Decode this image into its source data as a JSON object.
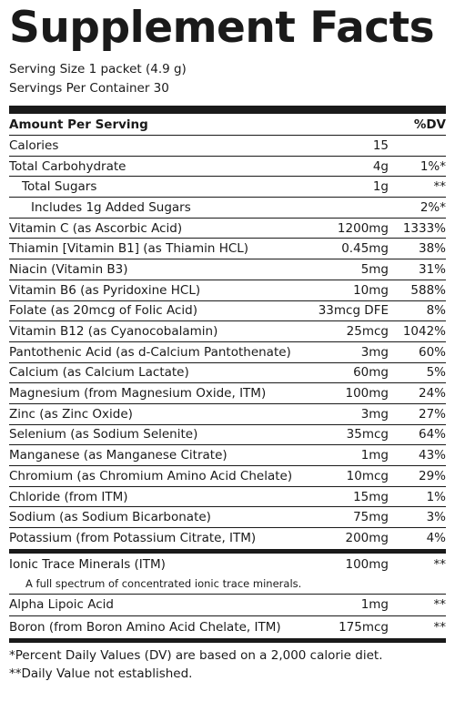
{
  "title": "Supplement Facts",
  "serving_size": "Serving Size 1 packet (4.9 g)",
  "servings_per_container": "Servings Per Container 30",
  "header": {
    "amount_label": "Amount Per Serving",
    "dv_label": "%DV"
  },
  "rows": [
    {
      "name": "Calories",
      "amount": "15",
      "dv": ""
    },
    {
      "name": "Total Carbohydrate",
      "amount": "4g",
      "dv": "1%*"
    },
    {
      "name": "Total Sugars",
      "amount": "1g",
      "dv": "**"
    },
    {
      "name": "Includes 1g Added Sugars",
      "amount": "",
      "dv": "2%*"
    },
    {
      "name": "Vitamin C (as Ascorbic Acid)",
      "amount": "1200mg",
      "dv": "1333%"
    },
    {
      "name": "Thiamin [Vitamin B1] (as Thiamin HCL)",
      "amount": "0.45mg",
      "dv": "38%"
    },
    {
      "name": "Niacin (Vitamin B3)",
      "amount": "5mg",
      "dv": "31%"
    },
    {
      "name": "Vitamin B6 (as Pyridoxine HCL)",
      "amount": "10mg",
      "dv": "588%"
    },
    {
      "name": "Folate (as 20mcg of Folic Acid)",
      "amount": "33mcg DFE",
      "dv": "8%"
    },
    {
      "name": "Vitamin B12 (as Cyanocobalamin)",
      "amount": "25mcg",
      "dv": "1042%"
    },
    {
      "name": "Pantothenic Acid (as d-Calcium Pantothenate)",
      "amount": "3mg",
      "dv": "60%"
    },
    {
      "name": "Calcium (as Calcium Lactate)",
      "amount": "60mg",
      "dv": "5%"
    },
    {
      "name": "Magnesium (from Magnesium Oxide, ITM)",
      "amount": "100mg",
      "dv": "24%"
    },
    {
      "name": "Zinc (as Zinc Oxide)",
      "amount": "3mg",
      "dv": "27%"
    },
    {
      "name": "Selenium (as Sodium Selenite)",
      "amount": "35mcg",
      "dv": "64%"
    },
    {
      "name": "Manganese (as Manganese Citrate)",
      "amount": "1mg",
      "dv": "43%"
    },
    {
      "name": "Chromium (as Chromium Amino Acid Chelate)",
      "amount": "10mcg",
      "dv": "29%"
    },
    {
      "name": "Chloride (from ITM)",
      "amount": "15mg",
      "dv": "1%"
    },
    {
      "name": "Sodium (as Sodium Bicarbonate)",
      "amount": "75mg",
      "dv": "3%"
    },
    {
      "name": "Potassium (from Potassium Citrate, ITM)",
      "amount": "200mg",
      "dv": "4%"
    }
  ],
  "itm": {
    "name": "Ionic Trace Minerals (ITM)",
    "amount": "100mg",
    "dv": "**",
    "note": "A full spectrum of concentrated ionic trace minerals."
  },
  "extras": [
    {
      "name": "Alpha Lipoic Acid",
      "amount": "1mg",
      "dv": "**"
    },
    {
      "name": "Boron (from Boron Amino Acid Chelate, ITM)",
      "amount": "175mcg",
      "dv": "**"
    }
  ],
  "footnotes": [
    "*Percent Daily Values (DV) are based on a 2,000 calorie diet.",
    "**Daily Value not established."
  ]
}
